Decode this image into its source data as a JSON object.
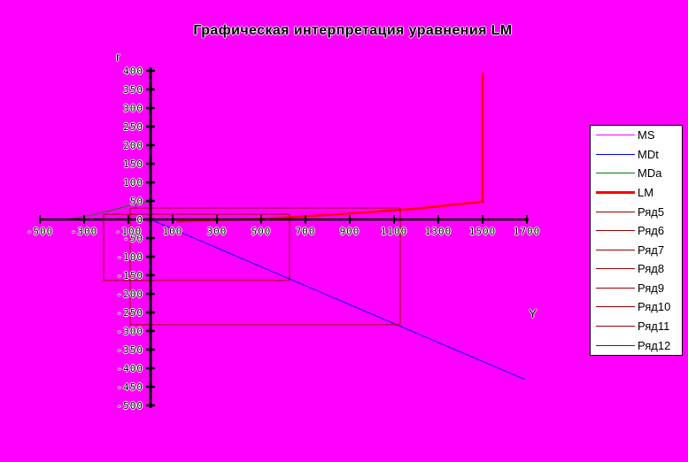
{
  "title": "Графическая интерпретация уравнения LM",
  "background_color": "#FF00FF",
  "axis_titles": {
    "y": "r",
    "x": "Y"
  },
  "chart_data": {
    "type": "line",
    "title": "Графическая интерпретация уравнения LM",
    "xlabel": "Y",
    "ylabel": "r",
    "grid": false,
    "legend_position": "right",
    "x_axis": {
      "min": -500,
      "max": 1700,
      "tick_step": 200,
      "ticks": [
        -500,
        -300,
        -100,
        100,
        300,
        500,
        700,
        900,
        1100,
        1300,
        1500,
        1700
      ]
    },
    "y_axis": {
      "min": -500,
      "max": 400,
      "tick_step": 50,
      "ticks": [
        400,
        350,
        300,
        250,
        200,
        150,
        100,
        50,
        0,
        -50,
        -100,
        -150,
        -200,
        -250,
        -300,
        -350,
        -400,
        -450,
        -500
      ]
    },
    "axis_color": "#000000",
    "series": [
      {
        "name": "MS",
        "color": "#FF00FF",
        "width": 1,
        "points": [
          [
            1500,
            -500
          ],
          [
            1500,
            400
          ]
        ]
      },
      {
        "name": "MDt",
        "color": "#0000FF",
        "width": 1,
        "points": [
          [
            0,
            0
          ],
          [
            1690,
            -430
          ]
        ]
      },
      {
        "name": "MDa",
        "color": "#008000",
        "width": 1,
        "points": [
          [
            -372,
            0
          ],
          [
            -264,
            12
          ],
          [
            -180,
            24
          ],
          [
            -92,
            38
          ],
          [
            -40,
            45
          ],
          [
            0,
            48
          ]
        ]
      },
      {
        "name": "LM",
        "color": "#FF0000",
        "width": 2.5,
        "points": [
          [
            120,
            -5
          ],
          [
            520,
            2
          ],
          [
            920,
            17
          ],
          [
            1200,
            29
          ],
          [
            1500,
            48
          ],
          [
            1500,
            395
          ]
        ]
      },
      {
        "name": "Ряд5",
        "color": "#990000",
        "width": 1,
        "points": [
          [
            -212,
            14
          ],
          [
            628,
            14
          ]
        ]
      },
      {
        "name": "Ряд6",
        "color": "#990000",
        "width": 1,
        "points": [
          [
            628,
            14
          ],
          [
            628,
            -164
          ]
        ]
      },
      {
        "name": "Ряд7",
        "color": "#990000",
        "width": 1,
        "points": [
          [
            628,
            -164
          ],
          [
            -212,
            -164
          ]
        ]
      },
      {
        "name": "Ряд8",
        "color": "#990000",
        "width": 1,
        "points": [
          [
            -212,
            -164
          ],
          [
            -212,
            14
          ]
        ]
      },
      {
        "name": "Ряд9",
        "color": "#990000",
        "width": 1,
        "points": [
          [
            -92,
            31
          ],
          [
            1128,
            31
          ]
        ]
      },
      {
        "name": "Ряд10",
        "color": "#990000",
        "width": 1,
        "points": [
          [
            1128,
            31
          ],
          [
            1128,
            -283
          ]
        ]
      },
      {
        "name": "Ряд11",
        "color": "#990000",
        "width": 1,
        "points": [
          [
            1128,
            -283
          ],
          [
            -92,
            -283
          ]
        ]
      },
      {
        "name": "Ряд12",
        "color": "#990000",
        "width": 1,
        "points": [
          [
            -92,
            -283
          ],
          [
            -92,
            31
          ]
        ]
      }
    ]
  }
}
